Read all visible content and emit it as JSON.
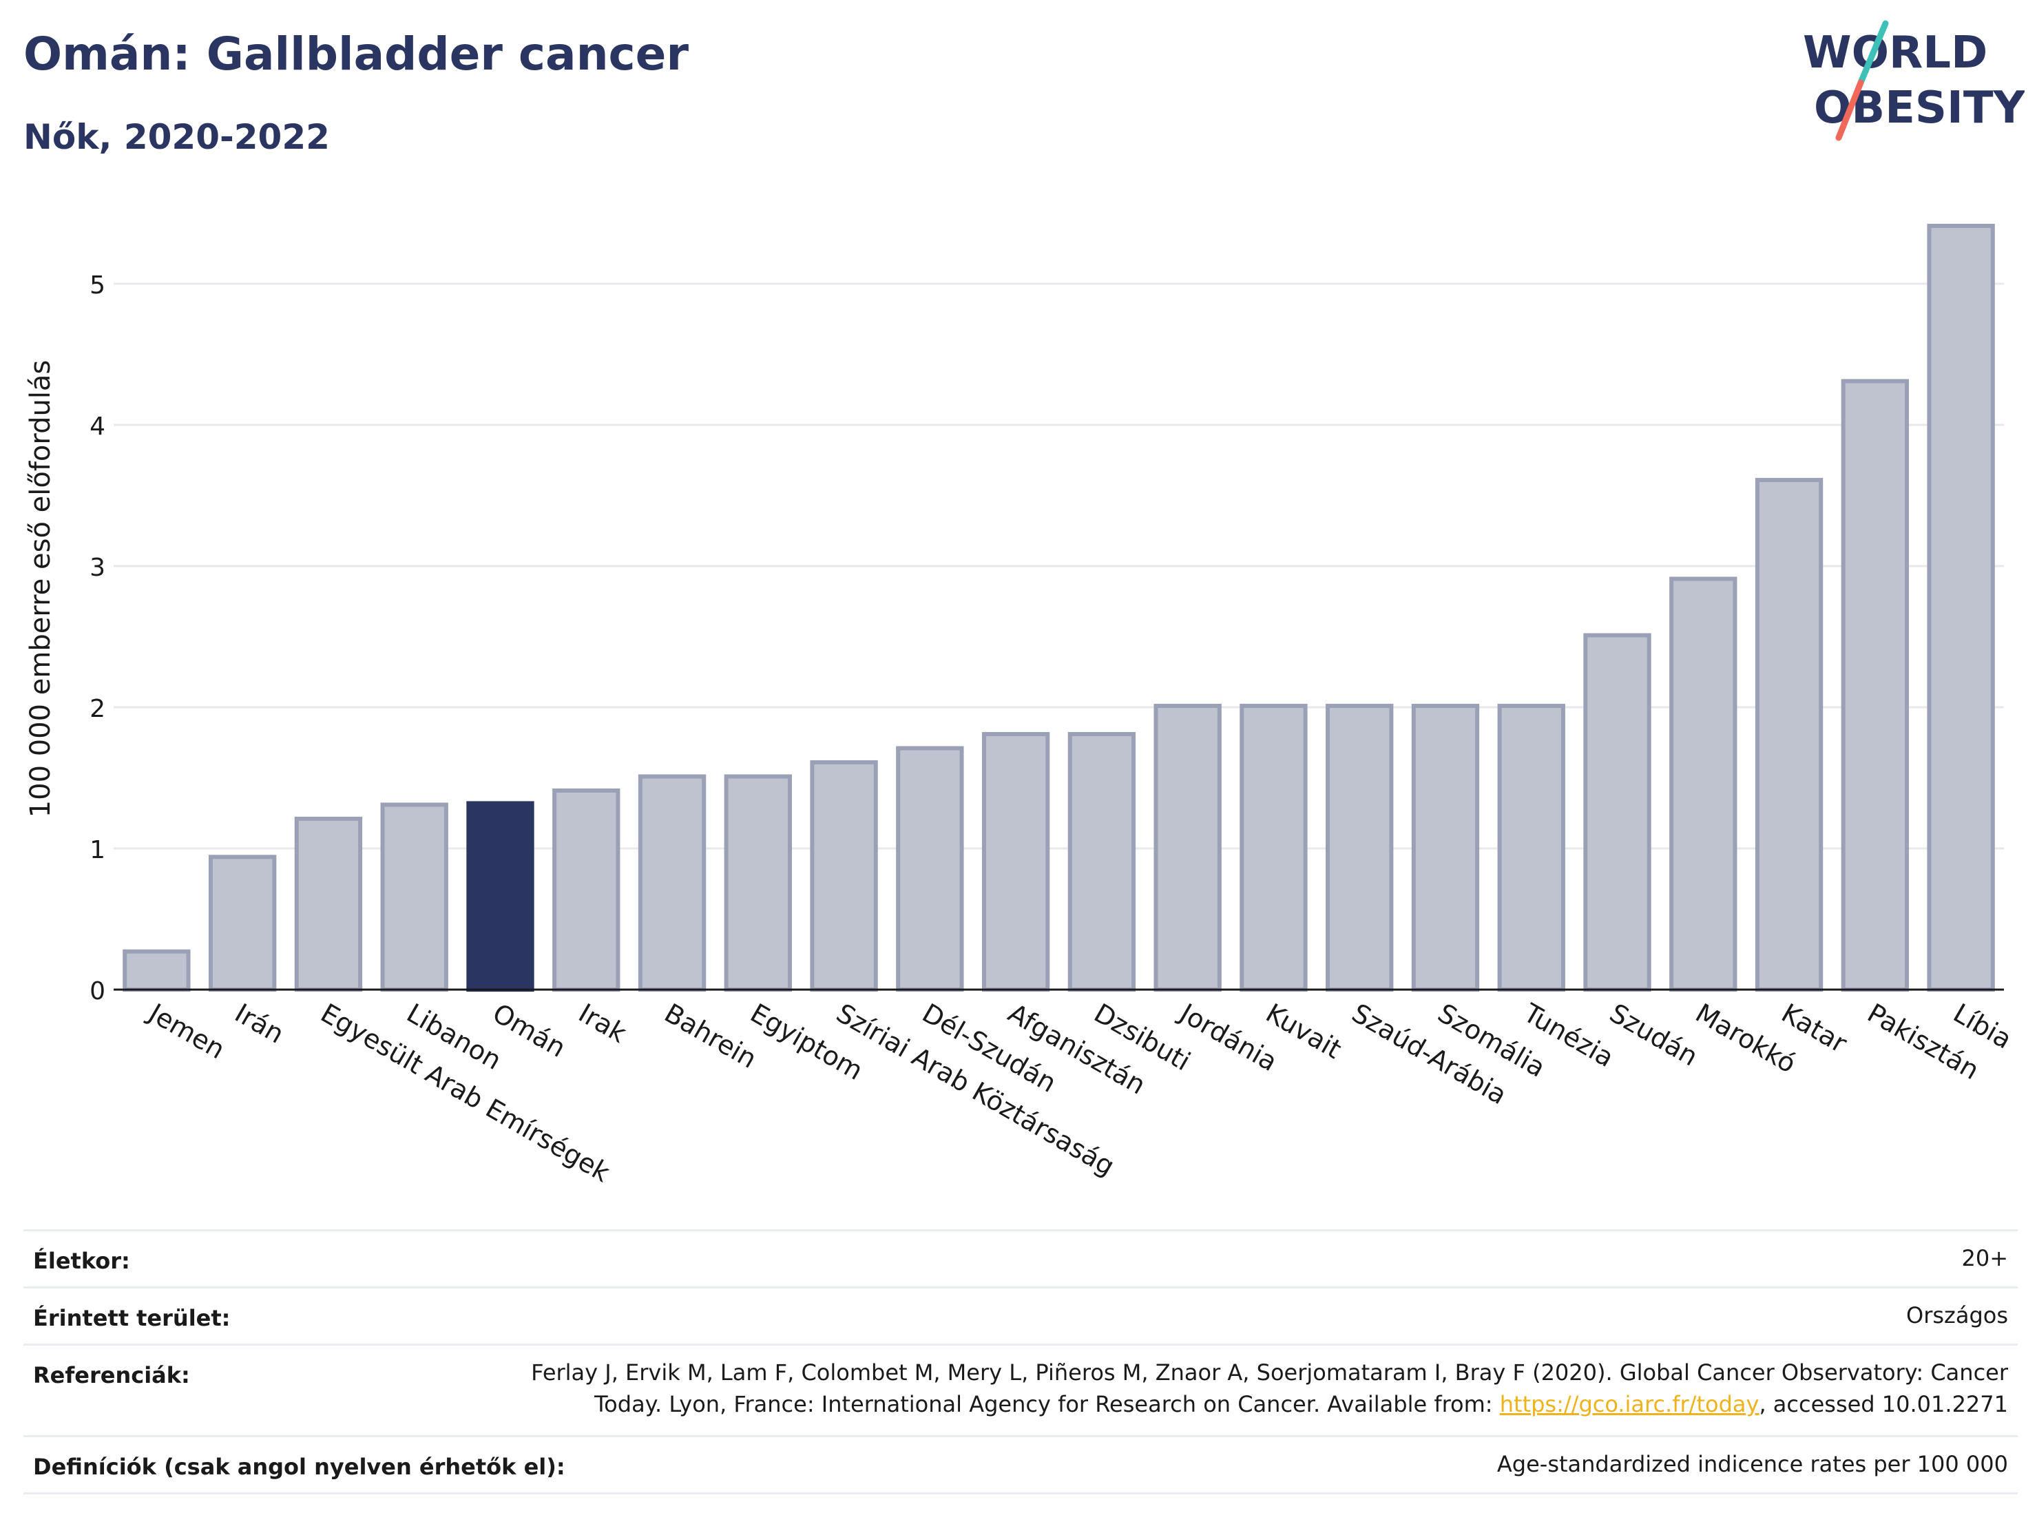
{
  "header": {
    "title": "Omán: Gallbladder cancer",
    "subtitle": "Nők, 2020-2022"
  },
  "logo": {
    "line1": "WORLD",
    "line2": "OBESITY",
    "colors": {
      "text": "#2b3561",
      "slash_top": "#3cc0b8",
      "slash_bottom": "#f0685a"
    }
  },
  "chart_data": {
    "type": "bar",
    "title": "",
    "xlabel": "",
    "ylabel": "100 000 emberre eső előfordulás",
    "ylim": [
      0,
      5.6
    ],
    "yticks": [
      0,
      1,
      2,
      3,
      4,
      5
    ],
    "grid": true,
    "highlight": "Omán",
    "colors": {
      "bar": "#bfc3cf",
      "bar_border": "#9aa0b5",
      "highlight": "#2b3561",
      "axis": "#1a1a1a",
      "grid": "#e6e8ee"
    },
    "categories": [
      "Jemen",
      "Irán",
      "Egyesült Arab Emírségek",
      "Libanon",
      "Omán",
      "Irak",
      "Bahrein",
      "Egyiptom",
      "Szíriai Arab Köztársaság",
      "Dél-Szudán",
      "Afganisztán",
      "Dzsibuti",
      "Jordánia",
      "Kuvait",
      "Szaúd-Arábia",
      "Szomália",
      "Tunézia",
      "Szudán",
      "Marokkó",
      "Katar",
      "Pakisztán",
      "Líbia"
    ],
    "values": [
      0.27,
      0.94,
      1.21,
      1.31,
      1.32,
      1.41,
      1.51,
      1.51,
      1.61,
      1.71,
      1.81,
      1.81,
      2.01,
      2.01,
      2.01,
      2.01,
      2.01,
      2.51,
      2.91,
      3.61,
      4.31,
      5.41
    ]
  },
  "info": {
    "rows": [
      {
        "label": "Életkor:",
        "value": "20+"
      },
      {
        "label": "Érintett terület:",
        "value": "Országos"
      },
      {
        "label": "Referenciák:",
        "value_line1": "Ferlay J, Ervik M, Lam F, Colombet M, Mery L, Piñeros M, Znaor A, Soerjomataram I, Bray F (2020). Global Cancer Observatory: Cancer",
        "value_line2_pre": "Today. Lyon, France: International Agency for Research on Cancer. Available from: ",
        "value_link": "https://gco.iarc.fr/today",
        "value_line2_post": ", accessed 10.01.2271"
      },
      {
        "label": "Definíciók (csak angol nyelven érhetők el):",
        "value": "Age-standardized indicence rates per 100 000"
      }
    ]
  }
}
